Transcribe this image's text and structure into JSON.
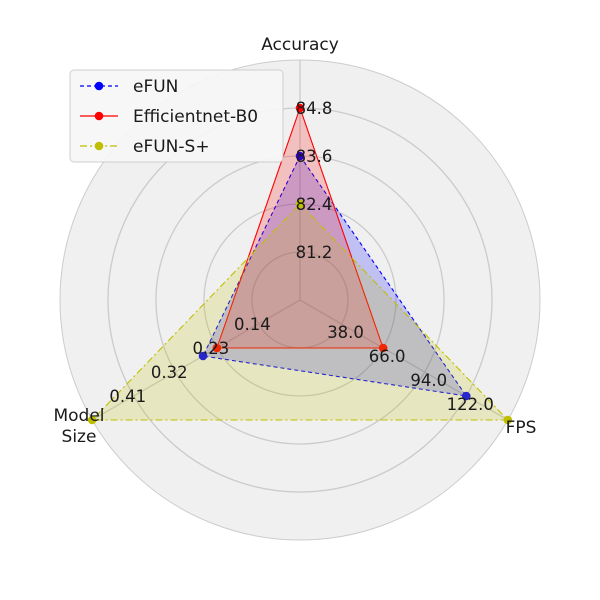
{
  "chart_data": {
    "type": "radar",
    "axes": [
      {
        "name": "Accuracy",
        "ticks": [
          "81.2",
          "82.4",
          "83.6",
          "84.8"
        ],
        "tick_values": [
          81.2,
          82.4,
          83.6,
          84.8
        ]
      },
      {
        "name": "FPS",
        "ticks": [
          "38.0",
          "66.0",
          "94.0",
          "122.0"
        ],
        "tick_values": [
          38.0,
          66.0,
          94.0,
          122.0
        ]
      },
      {
        "name": "Model Size",
        "ticks": [
          "0.14",
          "0.23",
          "0.32",
          "0.41"
        ],
        "tick_values": [
          0.14,
          0.23,
          0.32,
          0.41
        ]
      }
    ],
    "series": [
      {
        "name": "eFUN",
        "values": [
          83.6,
          122.0,
          0.26
        ],
        "color": "#0000ff",
        "line": "dashed",
        "fill": "#0000ff"
      },
      {
        "name": "Efficientnet-B0",
        "values": [
          84.8,
          66.0,
          0.23
        ],
        "color": "#ff0000",
        "line": "solid",
        "fill": "#ff0000"
      },
      {
        "name": "eFUN-S+",
        "values": [
          82.4,
          150.0,
          0.5
        ],
        "color": "#bfbf00",
        "line": "dashdot",
        "fill": "#bfbf00"
      }
    ],
    "grid": true,
    "legend_position": "upper-left"
  }
}
